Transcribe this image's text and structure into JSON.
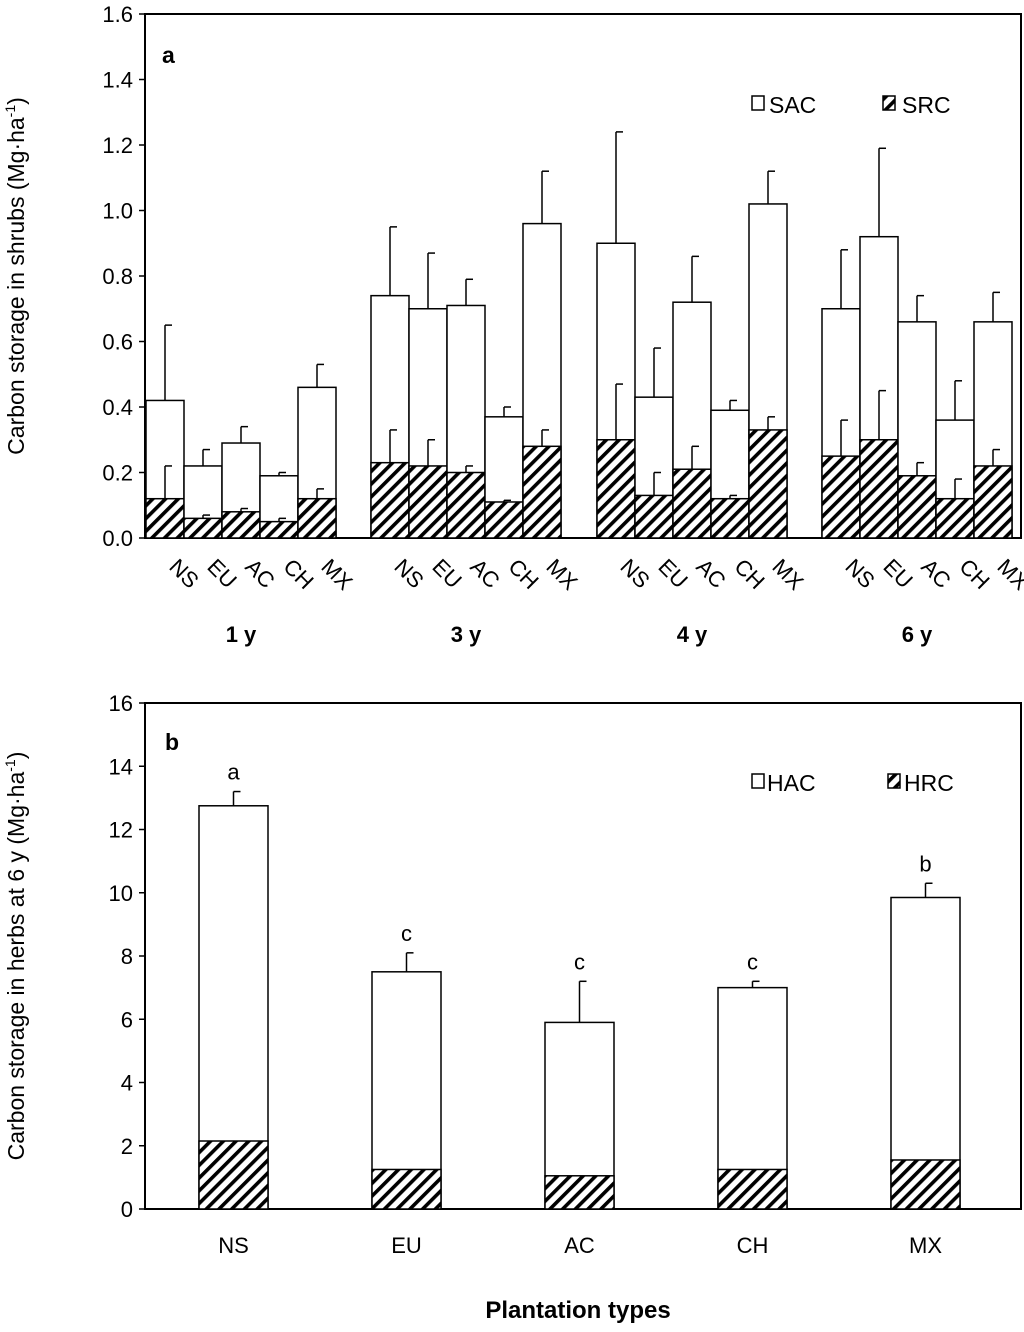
{
  "chart_data": [
    {
      "panel": "a",
      "type": "bar",
      "stacked": "overlay",
      "panel_label": "a",
      "ylabel": "Carbon storage in shrubs (Mg·ha",
      "ylabel_sup": "-1",
      "ylabel_close": ")",
      "ylim": [
        0,
        1.6
      ],
      "yticks": [
        "0.0",
        "0.2",
        "0.4",
        "0.6",
        "0.8",
        "1.0",
        "1.2",
        "1.4",
        "1.6"
      ],
      "types": [
        "NS",
        "EU",
        "AC",
        "CH",
        "MX"
      ],
      "groups": [
        "1 y",
        "3 y",
        "4 y",
        "6 y"
      ],
      "legend": {
        "position": "top-right",
        "items": [
          "SAC",
          "SRC"
        ]
      },
      "series": [
        {
          "name": "SAC",
          "pattern": "open",
          "values": [
            [
              0.42,
              0.22,
              0.29,
              0.19,
              0.46
            ],
            [
              0.74,
              0.7,
              0.71,
              0.37,
              0.96
            ],
            [
              0.9,
              0.43,
              0.72,
              0.39,
              1.02
            ],
            [
              0.7,
              0.92,
              0.66,
              0.36,
              0.66
            ]
          ],
          "errors": [
            [
              0.23,
              0.05,
              0.05,
              0.01,
              0.07
            ],
            [
              0.21,
              0.17,
              0.08,
              0.03,
              0.16
            ],
            [
              0.34,
              0.15,
              0.14,
              0.03,
              0.1
            ],
            [
              0.18,
              0.27,
              0.08,
              0.12,
              0.09
            ]
          ]
        },
        {
          "name": "SRC",
          "pattern": "hatched",
          "values": [
            [
              0.12,
              0.06,
              0.08,
              0.05,
              0.12
            ],
            [
              0.23,
              0.22,
              0.2,
              0.11,
              0.28
            ],
            [
              0.3,
              0.13,
              0.21,
              0.12,
              0.33
            ],
            [
              0.25,
              0.3,
              0.19,
              0.12,
              0.22
            ]
          ],
          "errors": [
            [
              0.1,
              0.01,
              0.01,
              0.01,
              0.03
            ],
            [
              0.1,
              0.08,
              0.02,
              0.005,
              0.05
            ],
            [
              0.17,
              0.07,
              0.07,
              0.01,
              0.04
            ],
            [
              0.11,
              0.15,
              0.04,
              0.06,
              0.05
            ]
          ]
        }
      ]
    },
    {
      "panel": "b",
      "type": "bar",
      "stacked": "overlay",
      "panel_label": "b",
      "ylabel": "Carbon storage in herbs at 6 y  (Mg·ha",
      "ylabel_sup": "-1",
      "ylabel_close": ")",
      "xlabel": "Plantation types",
      "ylim": [
        0,
        16
      ],
      "yticks": [
        "0",
        "2",
        "4",
        "6",
        "8",
        "10",
        "12",
        "14",
        "16"
      ],
      "categories": [
        "NS",
        "EU",
        "AC",
        "CH",
        "MX"
      ],
      "legend": {
        "position": "top-right",
        "items": [
          "HAC",
          "HRC"
        ]
      },
      "series": [
        {
          "name": "HAC",
          "pattern": "open",
          "values": [
            12.75,
            7.5,
            5.9,
            7.0,
            9.85
          ],
          "errors": [
            0.45,
            0.6,
            1.3,
            0.2,
            0.45
          ],
          "significance": [
            "a",
            "c",
            "c",
            "c",
            "b"
          ]
        },
        {
          "name": "HRC",
          "pattern": "hatched",
          "values": [
            2.15,
            1.25,
            1.05,
            1.25,
            1.55
          ]
        }
      ]
    }
  ]
}
